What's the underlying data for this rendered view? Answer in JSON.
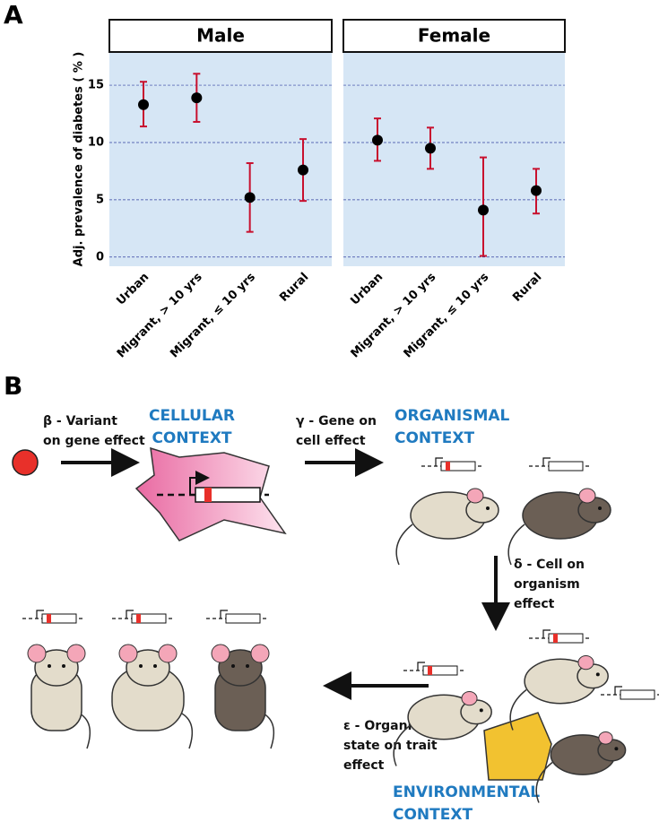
{
  "panel_labels": [
    "A",
    "B"
  ],
  "chart_data": [
    {
      "type": "errorbar",
      "title": "Male",
      "ylabel": "Adj. prevalence of diabetes ( % )",
      "categories": [
        "Urban",
        "Migrant, > 10 yrs",
        "Migrant, ≤ 10 yrs",
        "Rural"
      ],
      "values": [
        13.3,
        13.9,
        5.2,
        7.6
      ],
      "lower": [
        11.4,
        11.8,
        2.2,
        4.9
      ],
      "upper": [
        15.3,
        16.0,
        8.2,
        10.3
      ],
      "color": "#c8102e",
      "ylim": [
        -0.8,
        17.9
      ],
      "yticks": [
        0,
        5,
        10,
        15
      ],
      "grid": true
    },
    {
      "type": "errorbar",
      "title": "Female",
      "categories": [
        "Urban",
        "Migrant, > 10 yrs",
        "Migrant, ≤ 10 yrs",
        "Rural"
      ],
      "values": [
        10.2,
        9.5,
        4.1,
        5.8
      ],
      "lower": [
        8.4,
        7.7,
        0.1,
        3.8
      ],
      "upper": [
        12.1,
        11.3,
        8.7,
        7.7
      ],
      "color": "#c8102e",
      "ylim": [
        -0.8,
        17.9
      ],
      "yticks": [
        0,
        5,
        10,
        15
      ],
      "grid": true
    }
  ],
  "diagram": {
    "beta": [
      "β - Variant",
      "on gene effect"
    ],
    "cellular": [
      "CELLULAR",
      "CONTEXT"
    ],
    "gamma": [
      "γ - Gene on",
      "cell effect"
    ],
    "organismal": [
      "ORGANISMAL",
      "CONTEXT"
    ],
    "delta": [
      "δ - Cell on",
      "organism",
      "effect"
    ],
    "epsilon": [
      "ε - Organism",
      "state on trait",
      "effect"
    ],
    "environmental": [
      "ENVIRONMENTAL",
      "CONTEXT"
    ]
  }
}
